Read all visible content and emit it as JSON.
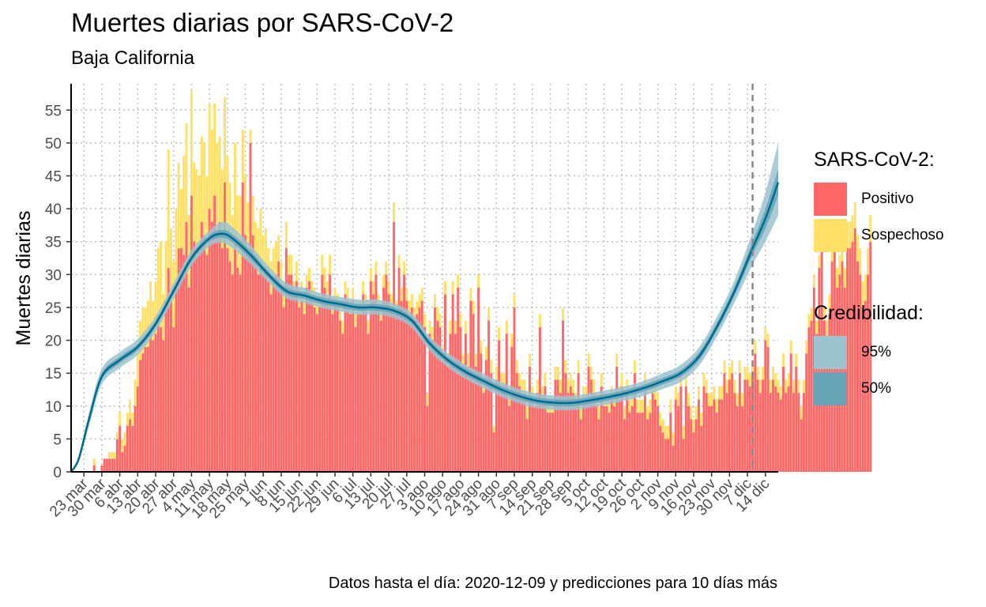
{
  "title": "Muertes diarias por SARS-CoV-2",
  "subtitle": "Baja California",
  "caption": "Datos hasta el día: 2020-12-09 y predicciones para 10 días más",
  "legend_status": {
    "title": "SARS-CoV-2:",
    "items": [
      {
        "label": "Positivo",
        "color": "#ff6767"
      },
      {
        "label": "Sospechoso",
        "color": "#ffe066"
      }
    ]
  },
  "legend_cred": {
    "title": "Credibilidad:",
    "items": [
      {
        "label": "95%",
        "color": "#9cc3d0"
      },
      {
        "label": "50%",
        "color": "#67a6b9"
      }
    ]
  },
  "chart_data": {
    "type": "bar",
    "title": "Muertes diarias por SARS-CoV-2",
    "subtitle": "Baja California",
    "ylabel": "Muertes diarias",
    "xlabel": "",
    "ylim": [
      0,
      59
    ],
    "yticks": [
      0,
      5,
      10,
      15,
      20,
      25,
      30,
      35,
      40,
      45,
      50,
      55
    ],
    "x_start": "2020-03-18",
    "x_end": "2020-12-19",
    "data_cutoff": "2020-12-09",
    "xticks": [
      "23 mar",
      "30 mar",
      "6 abr",
      "13 abr",
      "20 abr",
      "27 abr",
      "4 may",
      "11 may",
      "18 may",
      "25 may",
      "1 jun",
      "8 jun",
      "15 jun",
      "22 jun",
      "29 jun",
      "6 jul",
      "13 jul",
      "20 jul",
      "27 jul",
      "3 ago",
      "10 ago",
      "17 ago",
      "24 ago",
      "31 ago",
      "7 sep",
      "14 sep",
      "21 sep",
      "28 sep",
      "5 oct",
      "12 oct",
      "19 oct",
      "26 oct",
      "2 nov",
      "9 nov",
      "16 nov",
      "23 nov",
      "30 nov",
      "7 dic",
      "14 dic"
    ],
    "grid": true,
    "bars_start_date": "2020-03-23",
    "positivo": [
      0,
      0,
      0,
      0,
      1,
      0,
      0,
      1,
      2,
      2,
      2,
      2,
      2,
      5,
      7,
      3,
      4,
      7,
      8,
      7,
      10,
      13,
      17,
      18,
      19,
      19,
      22,
      20,
      21,
      24,
      22,
      20,
      26,
      31,
      26,
      22,
      28,
      34,
      34,
      33,
      38,
      28,
      42,
      35,
      33,
      34,
      38,
      36,
      33,
      40,
      38,
      42,
      36,
      38,
      34,
      44,
      34,
      32,
      30,
      36,
      31,
      30,
      44,
      36,
      33,
      50,
      36,
      33,
      30,
      32,
      30,
      31,
      29,
      27,
      29,
      30,
      32,
      28,
      25,
      34,
      30,
      30,
      27,
      29,
      25,
      26,
      24,
      28,
      29,
      26,
      25,
      24,
      25,
      30,
      28,
      26,
      30,
      24,
      26,
      25,
      23,
      21,
      27,
      26,
      24,
      26,
      22,
      24,
      24,
      27,
      25,
      21,
      29,
      27,
      30,
      25,
      23,
      28,
      30,
      27,
      25,
      38,
      24,
      31,
      26,
      30,
      26,
      24,
      25,
      23,
      24,
      25,
      26,
      22,
      10,
      21,
      20,
      25,
      23,
      22,
      17,
      27,
      16,
      21,
      27,
      21,
      28,
      22,
      16,
      21,
      16,
      26,
      24,
      16,
      28,
      18,
      12,
      17,
      23,
      15,
      6,
      14,
      20,
      13,
      13,
      21,
      10,
      19,
      25,
      15,
      13,
      12,
      12,
      8,
      16,
      11,
      10,
      12,
      22,
      11,
      13,
      9,
      9,
      9,
      14,
      14,
      12,
      23,
      15,
      12,
      13,
      12,
      10,
      15,
      8,
      11,
      11,
      16,
      14,
      12,
      10,
      8,
      13,
      10,
      10,
      9,
      11,
      10,
      16,
      11,
      13,
      8,
      12,
      9,
      10,
      15,
      9,
      9,
      9,
      13,
      8,
      9,
      12,
      11,
      10,
      7,
      6,
      5,
      5,
      9,
      4,
      11,
      10,
      13,
      5,
      13,
      10,
      8,
      6,
      8,
      11,
      7,
      13,
      12,
      10,
      10,
      11,
      9,
      11,
      11,
      15,
      12,
      14,
      15,
      12,
      10,
      15,
      10,
      14,
      14,
      13,
      15,
      18,
      14,
      12,
      14,
      20,
      19,
      12,
      14,
      13,
      12,
      11,
      16,
      12,
      13,
      18,
      12,
      16,
      12,
      8,
      12,
      18,
      22,
      23,
      28,
      21,
      31,
      34,
      23,
      20,
      24,
      32,
      35,
      28,
      30,
      32,
      28,
      34,
      34,
      35,
      37,
      32,
      30,
      25,
      26,
      30,
      35
    ],
    "sospechoso": [
      0,
      0,
      0,
      0,
      1,
      0,
      0,
      0,
      0,
      0,
      1,
      1,
      1,
      1,
      2,
      2,
      2,
      2,
      3,
      2,
      4,
      5,
      6,
      7,
      6,
      7,
      7,
      6,
      8,
      10,
      13,
      7,
      9,
      18,
      11,
      10,
      12,
      13,
      9,
      15,
      15,
      11,
      16,
      12,
      13,
      11,
      13,
      14,
      12,
      16,
      14,
      14,
      14,
      13,
      12,
      13,
      14,
      12,
      9,
      14,
      11,
      12,
      8,
      9,
      8,
      2,
      6,
      5,
      7,
      8,
      6,
      6,
      5,
      5,
      5,
      5,
      4,
      4,
      4,
      4,
      3,
      3,
      2,
      3,
      3,
      3,
      2,
      2,
      2,
      3,
      3,
      2,
      2,
      3,
      3,
      3,
      3,
      2,
      2,
      2,
      2,
      2,
      2,
      2,
      2,
      2,
      2,
      2,
      2,
      2,
      2,
      2,
      2,
      2,
      2,
      2,
      2,
      2,
      2,
      2,
      2,
      3,
      2,
      2,
      2,
      2,
      2,
      2,
      2,
      2,
      2,
      2,
      2,
      2,
      2,
      2,
      2,
      2,
      2,
      2,
      2,
      2,
      2,
      2,
      2,
      2,
      2,
      2,
      2,
      2,
      2,
      2,
      2,
      2,
      2,
      2,
      2,
      2,
      2,
      2,
      1,
      2,
      2,
      2,
      2,
      2,
      2,
      2,
      2,
      2,
      2,
      2,
      2,
      2,
      2,
      2,
      2,
      2,
      2,
      2,
      2,
      2,
      2,
      2,
      2,
      2,
      2,
      2,
      2,
      2,
      2,
      2,
      2,
      2,
      2,
      2,
      2,
      2,
      2,
      2,
      2,
      2,
      2,
      2,
      2,
      2,
      2,
      2,
      2,
      2,
      2,
      2,
      2,
      2,
      2,
      2,
      2,
      2,
      2,
      2,
      2,
      2,
      2,
      2,
      2,
      2,
      2,
      2,
      2,
      2,
      2,
      2,
      2,
      2,
      2,
      2,
      2,
      2,
      2,
      2,
      2,
      2,
      2,
      2,
      2,
      2,
      2,
      2,
      2,
      2,
      2,
      2,
      2,
      2,
      2,
      2,
      2,
      2,
      2,
      2,
      2,
      2,
      2,
      2,
      2,
      2,
      2,
      2,
      2,
      2,
      2,
      2,
      2,
      2,
      2,
      2,
      2,
      2,
      2,
      2,
      2,
      2,
      2,
      2,
      2,
      2,
      2,
      2,
      2,
      2,
      3,
      3,
      3,
      3,
      3,
      3,
      3,
      3,
      4,
      4,
      4,
      4,
      4,
      4,
      4,
      4,
      4,
      4,
      4,
      4,
      4,
      4,
      4
    ],
    "fit_knots": [
      {
        "date": "2020-03-18",
        "mean": 0,
        "lo50": 0,
        "hi50": 0,
        "lo95": 0,
        "hi95": 0
      },
      {
        "date": "2020-03-21",
        "mean": 2,
        "lo50": 1.8,
        "hi50": 2.2,
        "lo95": 1.5,
        "hi95": 2.5
      },
      {
        "date": "2020-03-25",
        "mean": 8,
        "lo50": 7.6,
        "hi50": 8.4,
        "lo95": 7.0,
        "hi95": 9.0
      },
      {
        "date": "2020-03-30",
        "mean": 14.5,
        "lo50": 14.0,
        "hi50": 15.0,
        "lo95": 13.3,
        "hi95": 15.7
      },
      {
        "date": "2020-04-06",
        "mean": 17,
        "lo50": 16.5,
        "hi50": 17.5,
        "lo95": 15.8,
        "hi95": 18.2
      },
      {
        "date": "2020-04-13",
        "mean": 19,
        "lo50": 18.5,
        "hi50": 19.5,
        "lo95": 17.8,
        "hi95": 20.2
      },
      {
        "date": "2020-04-20",
        "mean": 22.5,
        "lo50": 22.0,
        "hi50": 23.0,
        "lo95": 21.3,
        "hi95": 23.7
      },
      {
        "date": "2020-04-27",
        "mean": 27.5,
        "lo50": 27.0,
        "hi50": 28.0,
        "lo95": 26.3,
        "hi95": 28.7
      },
      {
        "date": "2020-05-04",
        "mean": 32.5,
        "lo50": 32.0,
        "hi50": 33.0,
        "lo95": 31.3,
        "hi95": 33.7
      },
      {
        "date": "2020-05-11",
        "mean": 35.5,
        "lo50": 35.0,
        "hi50": 36.0,
        "lo95": 34.3,
        "hi95": 36.7
      },
      {
        "date": "2020-05-16",
        "mean": 36.2,
        "lo50": 35.6,
        "hi50": 36.8,
        "lo95": 34.8,
        "hi95": 38.0
      },
      {
        "date": "2020-05-20",
        "mean": 35.5,
        "lo50": 34.9,
        "hi50": 36.1,
        "lo95": 34.0,
        "hi95": 37.2
      },
      {
        "date": "2020-05-27",
        "mean": 33,
        "lo50": 32.4,
        "hi50": 33.6,
        "lo95": 31.6,
        "hi95": 34.5
      },
      {
        "date": "2020-06-03",
        "mean": 30,
        "lo50": 29.5,
        "hi50": 30.5,
        "lo95": 28.8,
        "hi95": 31.3
      },
      {
        "date": "2020-06-10",
        "mean": 27.5,
        "lo50": 27.0,
        "hi50": 28.0,
        "lo95": 26.4,
        "hi95": 28.7
      },
      {
        "date": "2020-06-17",
        "mean": 26.8,
        "lo50": 26.3,
        "hi50": 27.3,
        "lo95": 25.7,
        "hi95": 28.0
      },
      {
        "date": "2020-06-24",
        "mean": 26,
        "lo50": 25.5,
        "hi50": 26.5,
        "lo95": 24.9,
        "hi95": 27.1
      },
      {
        "date": "2020-07-01",
        "mean": 25.5,
        "lo50": 25.0,
        "hi50": 26.0,
        "lo95": 24.4,
        "hi95": 26.6
      },
      {
        "date": "2020-07-08",
        "mean": 25,
        "lo50": 24.5,
        "hi50": 25.5,
        "lo95": 23.9,
        "hi95": 26.2
      },
      {
        "date": "2020-07-15",
        "mean": 25,
        "lo50": 24.5,
        "hi50": 25.5,
        "lo95": 23.9,
        "hi95": 26.2
      },
      {
        "date": "2020-07-22",
        "mean": 24.5,
        "lo50": 24.0,
        "hi50": 25.0,
        "lo95": 23.4,
        "hi95": 25.6
      },
      {
        "date": "2020-07-29",
        "mean": 23,
        "lo50": 22.5,
        "hi50": 23.5,
        "lo95": 21.9,
        "hi95": 24.1
      },
      {
        "date": "2020-08-05",
        "mean": 19.5,
        "lo50": 19.0,
        "hi50": 20.0,
        "lo95": 18.4,
        "hi95": 20.6
      },
      {
        "date": "2020-08-12",
        "mean": 17,
        "lo50": 16.5,
        "hi50": 17.5,
        "lo95": 15.9,
        "hi95": 18.1
      },
      {
        "date": "2020-08-19",
        "mean": 15.2,
        "lo50": 14.7,
        "hi50": 15.7,
        "lo95": 14.1,
        "hi95": 16.3
      },
      {
        "date": "2020-08-26",
        "mean": 13.8,
        "lo50": 13.3,
        "hi50": 14.3,
        "lo95": 12.7,
        "hi95": 14.9
      },
      {
        "date": "2020-09-02",
        "mean": 12.5,
        "lo50": 12.0,
        "hi50": 13.0,
        "lo95": 11.4,
        "hi95": 13.6
      },
      {
        "date": "2020-09-09",
        "mean": 11.5,
        "lo50": 11.0,
        "hi50": 12.0,
        "lo95": 10.4,
        "hi95": 12.6
      },
      {
        "date": "2020-09-16",
        "mean": 10.8,
        "lo50": 10.3,
        "hi50": 11.3,
        "lo95": 9.7,
        "hi95": 11.9
      },
      {
        "date": "2020-09-23",
        "mean": 10.5,
        "lo50": 10.0,
        "hi50": 11.0,
        "lo95": 9.4,
        "hi95": 11.6
      },
      {
        "date": "2020-09-30",
        "mean": 10.5,
        "lo50": 10.0,
        "hi50": 11.0,
        "lo95": 9.4,
        "hi95": 11.6
      },
      {
        "date": "2020-10-07",
        "mean": 10.9,
        "lo50": 10.4,
        "hi50": 11.4,
        "lo95": 9.8,
        "hi95": 12.0
      },
      {
        "date": "2020-10-14",
        "mean": 11.4,
        "lo50": 10.9,
        "hi50": 11.9,
        "lo95": 10.3,
        "hi95": 12.5
      },
      {
        "date": "2020-10-21",
        "mean": 12,
        "lo50": 11.5,
        "hi50": 12.5,
        "lo95": 10.9,
        "hi95": 13.1
      },
      {
        "date": "2020-10-28",
        "mean": 12.8,
        "lo50": 12.3,
        "hi50": 13.3,
        "lo95": 11.6,
        "hi95": 13.9
      },
      {
        "date": "2020-11-04",
        "mean": 13.8,
        "lo50": 13.3,
        "hi50": 14.3,
        "lo95": 12.6,
        "hi95": 15.0
      },
      {
        "date": "2020-11-11",
        "mean": 15,
        "lo50": 14.5,
        "hi50": 15.5,
        "lo95": 13.7,
        "hi95": 16.3
      },
      {
        "date": "2020-11-18",
        "mean": 17.5,
        "lo50": 16.9,
        "hi50": 18.1,
        "lo95": 16.1,
        "hi95": 18.9
      },
      {
        "date": "2020-11-25",
        "mean": 22,
        "lo50": 21.4,
        "hi50": 22.6,
        "lo95": 20.5,
        "hi95": 23.5
      },
      {
        "date": "2020-12-02",
        "mean": 27.5,
        "lo50": 26.8,
        "hi50": 28.2,
        "lo95": 25.8,
        "hi95": 29.2
      },
      {
        "date": "2020-12-09",
        "mean": 34,
        "lo50": 33.0,
        "hi50": 35.0,
        "lo95": 31.5,
        "hi95": 36.5
      },
      {
        "date": "2020-12-14",
        "mean": 38.5,
        "lo50": 37.0,
        "hi50": 40.0,
        "lo95": 35.0,
        "hi95": 42.5
      },
      {
        "date": "2020-12-19",
        "mean": 44,
        "lo50": 42.0,
        "hi50": 46.0,
        "lo95": 39.0,
        "hi95": 50.0
      }
    ],
    "colors": {
      "positivo": "#ff6767",
      "sospechoso": "#ffe066",
      "fit": "#006b8f",
      "band95": "#9cc3d0",
      "band50": "#67a6b9",
      "cutoff": "#888888"
    }
  }
}
